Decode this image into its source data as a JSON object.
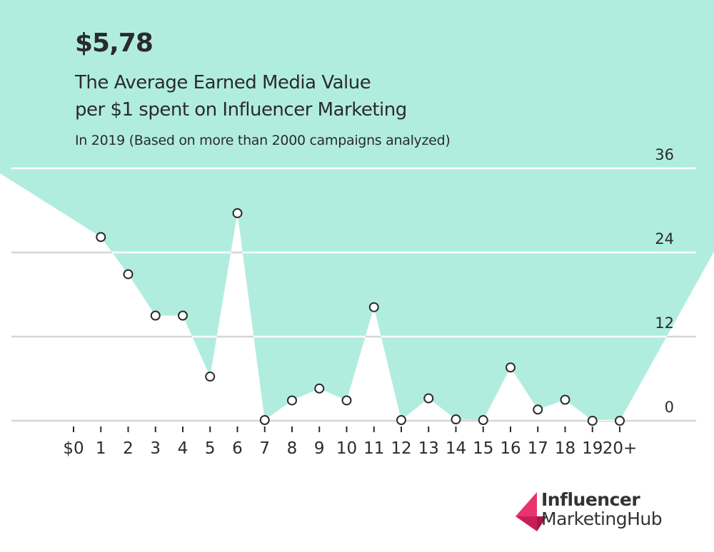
{
  "header": {
    "headline_value": "$5,78",
    "title_line1": "The Average Earned Media Value",
    "title_line2": "per $1 spent on Influencer Marketing",
    "subtitle": "In 2019 (Based on more than 2000 campaigns analyzed)"
  },
  "chart_data": {
    "type": "area",
    "title": "The Average Earned Media Value per $1 spent on Influencer Marketing",
    "subtitle": "In 2019 (Based on more than 2000 campaigns analyzed)",
    "categories": [
      "$0",
      "1",
      "2",
      "3",
      "4",
      "5",
      "6",
      "7",
      "8",
      "9",
      "10",
      "11",
      "12",
      "13",
      "14",
      "15",
      "16",
      "17",
      "18",
      "19",
      "20+"
    ],
    "values": [
      null,
      26.2,
      20.9,
      15.0,
      15.0,
      6.3,
      29.6,
      0.1,
      2.9,
      4.6,
      2.9,
      16.2,
      0.1,
      3.2,
      0.2,
      0.1,
      7.6,
      1.6,
      3.0,
      0,
      0
    ],
    "y_ticks": [
      "36",
      "24",
      "12",
      "0"
    ],
    "ylim": [
      0,
      36
    ],
    "grid": true,
    "colors": {
      "fill": "#b1eddf",
      "marker_stroke": "#2b2b2b",
      "grid_on_fill": "#ffffff",
      "grid_on_white": "#d6d6d6"
    }
  },
  "logo": {
    "line1": "Influencer",
    "line2": "MarketingHub",
    "color": "#e8336d"
  }
}
